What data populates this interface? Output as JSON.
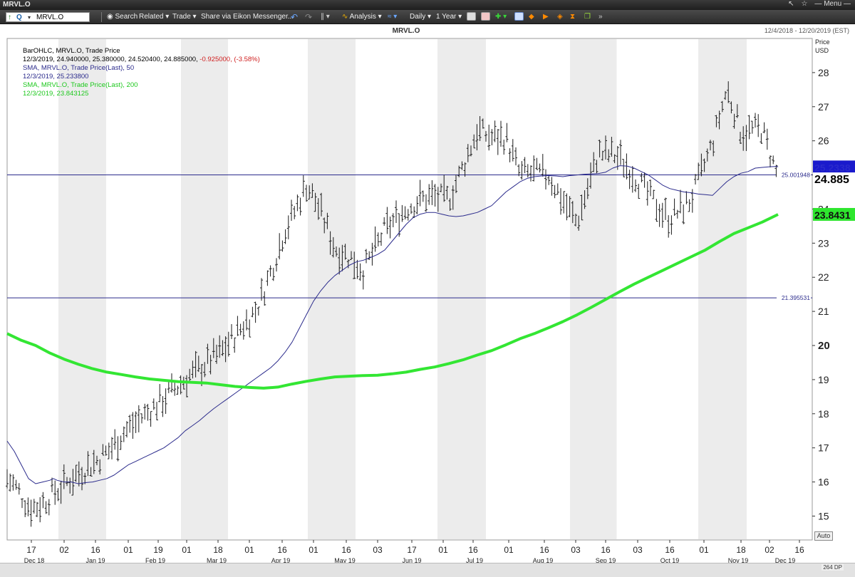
{
  "window": {
    "title": "MRVL.O",
    "controls": [
      "↖",
      "☆",
      "— Menu —"
    ]
  },
  "toolbar": {
    "ric_value": "MRVL.O",
    "search_label": "Search",
    "related_label": "Related",
    "trade_label": "Trade",
    "share_label": "Share via Eikon Messenger...",
    "analysis_label": "Analysis",
    "interval_label": "Daily",
    "period_label": "1 Year"
  },
  "header": {
    "title": "MRVL.O",
    "date_range": "12/4/2018 - 12/20/2019 (EST)"
  },
  "legend": {
    "line1": "BarOHLC, MRVL.O, Trade Price",
    "line2a": "12/3/2019, 24.940000, 25.380000, 24.520400, 24.885000, ",
    "line2b": "-0.925000, (-3.58%)",
    "line3": "SMA, MRVL.O, Trade Price(Last),  50",
    "line4": "12/3/2019, 25.233800",
    "line5": "SMA, MRVL.O, Trade Price(Last),  200",
    "line6": "12/3/2019, 23.843125"
  },
  "axis_labels": {
    "price": "Price",
    "currency": "USD",
    "auto": "Auto",
    "dp": "264 DP"
  },
  "colors": {
    "bars": "#1a1a1a",
    "sma50": "#2b2b8c",
    "sma200": "#33e633",
    "hline": "#2b2b8c",
    "negative": "#d02020",
    "band": "#ececec"
  },
  "chart_data": {
    "type": "line",
    "title": "MRVL.O",
    "ylabel": "Price USD",
    "ylim": [
      14.3,
      29.0
    ],
    "yticks": [
      15,
      16,
      17,
      18,
      19,
      20,
      21,
      22,
      23,
      24,
      25,
      26,
      27,
      28
    ],
    "x_major_ticks": [
      "17",
      "02",
      "16",
      "01",
      "19",
      "01",
      "18",
      "01",
      "16",
      "01",
      "16",
      "03",
      "17",
      "01",
      "16",
      "01",
      "16",
      "03",
      "16",
      "03",
      "16",
      "01",
      "18",
      "02",
      "16"
    ],
    "x_month_labels": [
      "Dec 18",
      "Jan 19",
      "Feb 19",
      "Mar 19",
      "Apr 19",
      "May 19",
      "Jun 19",
      "Jul 19",
      "Aug 19",
      "Sep 19",
      "Oct 19",
      "Nov 19",
      "Dec 19"
    ],
    "horizontal_lines": [
      {
        "value": 25.001948,
        "label": "25.001948"
      },
      {
        "value": 21.395531,
        "label": "21.395531"
      }
    ],
    "last_values": {
      "price": "24.885",
      "sma50": "25.2338",
      "sma200": "23.8431"
    },
    "series": [
      {
        "name": "SMA, MRVL.O, Trade Price(Last), 50",
        "points": [
          [
            0,
            17.2
          ],
          [
            10,
            16.9
          ],
          [
            20,
            16.5
          ],
          [
            30,
            16.1
          ],
          [
            40,
            15.95
          ],
          [
            50,
            16.0
          ],
          [
            60,
            16.05
          ],
          [
            65,
            16.1
          ],
          [
            70,
            16.05
          ],
          [
            80,
            16.0
          ],
          [
            90,
            16.0
          ],
          [
            100,
            15.95
          ],
          [
            110,
            15.98
          ],
          [
            120,
            16.0
          ],
          [
            130,
            16.05
          ],
          [
            140,
            16.1
          ],
          [
            150,
            16.2
          ],
          [
            160,
            16.35
          ],
          [
            170,
            16.5
          ],
          [
            180,
            16.6
          ],
          [
            190,
            16.7
          ],
          [
            200,
            16.8
          ],
          [
            210,
            16.9
          ],
          [
            220,
            17.0
          ],
          [
            230,
            17.15
          ],
          [
            240,
            17.3
          ],
          [
            250,
            17.5
          ],
          [
            260,
            17.65
          ],
          [
            270,
            17.8
          ],
          [
            280,
            17.98
          ],
          [
            290,
            18.15
          ],
          [
            300,
            18.3
          ],
          [
            310,
            18.45
          ],
          [
            320,
            18.6
          ],
          [
            330,
            18.75
          ],
          [
            340,
            18.9
          ],
          [
            350,
            19.05
          ],
          [
            360,
            19.2
          ],
          [
            370,
            19.35
          ],
          [
            380,
            19.55
          ],
          [
            390,
            19.8
          ],
          [
            400,
            20.1
          ],
          [
            410,
            20.5
          ],
          [
            420,
            20.9
          ],
          [
            430,
            21.3
          ],
          [
            440,
            21.6
          ],
          [
            450,
            21.85
          ],
          [
            460,
            22.05
          ],
          [
            470,
            22.2
          ],
          [
            480,
            22.35
          ],
          [
            490,
            22.45
          ],
          [
            500,
            22.5
          ],
          [
            510,
            22.58
          ],
          [
            520,
            22.67
          ],
          [
            530,
            22.8
          ],
          [
            540,
            23.05
          ],
          [
            550,
            23.3
          ],
          [
            560,
            23.55
          ],
          [
            570,
            23.75
          ],
          [
            580,
            23.85
          ],
          [
            590,
            23.9
          ],
          [
            600,
            23.9
          ],
          [
            610,
            23.85
          ],
          [
            620,
            23.8
          ],
          [
            630,
            23.78
          ],
          [
            640,
            23.8
          ],
          [
            650,
            23.85
          ],
          [
            660,
            23.9
          ],
          [
            670,
            24.0
          ],
          [
            680,
            24.1
          ],
          [
            690,
            24.3
          ],
          [
            700,
            24.5
          ],
          [
            710,
            24.65
          ],
          [
            720,
            24.8
          ],
          [
            730,
            24.9
          ],
          [
            740,
            24.95
          ],
          [
            750,
            24.97
          ],
          [
            760,
            24.98
          ],
          [
            770,
            24.97
          ],
          [
            780,
            24.95
          ],
          [
            790,
            24.98
          ],
          [
            800,
            25.0
          ],
          [
            810,
            25.02
          ],
          [
            820,
            25.03
          ],
          [
            830,
            25.04
          ],
          [
            840,
            25.08
          ],
          [
            850,
            25.2
          ],
          [
            860,
            25.27
          ],
          [
            870,
            25.26
          ],
          [
            880,
            25.2
          ],
          [
            890,
            25.1
          ],
          [
            900,
            25.0
          ],
          [
            910,
            24.85
          ],
          [
            920,
            24.7
          ],
          [
            930,
            24.6
          ],
          [
            940,
            24.55
          ],
          [
            950,
            24.5
          ],
          [
            960,
            24.48
          ],
          [
            970,
            24.44
          ],
          [
            980,
            24.42
          ],
          [
            990,
            24.4
          ],
          [
            1000,
            24.6
          ],
          [
            1010,
            24.8
          ],
          [
            1020,
            24.95
          ],
          [
            1030,
            25.05
          ],
          [
            1040,
            25.1
          ],
          [
            1050,
            25.2
          ],
          [
            1060,
            25.22
          ],
          [
            1070,
            25.24
          ],
          [
            1080,
            25.25
          ],
          [
            1082,
            25.2338
          ]
        ]
      },
      {
        "name": "SMA, MRVL.O, Trade Price(Last), 200",
        "points": [
          [
            0,
            20.35
          ],
          [
            20,
            20.15
          ],
          [
            40,
            20.0
          ],
          [
            60,
            19.78
          ],
          [
            80,
            19.6
          ],
          [
            100,
            19.45
          ],
          [
            120,
            19.32
          ],
          [
            140,
            19.22
          ],
          [
            160,
            19.15
          ],
          [
            180,
            19.08
          ],
          [
            200,
            19.02
          ],
          [
            220,
            18.98
          ],
          [
            240,
            18.94
          ],
          [
            260,
            18.92
          ],
          [
            280,
            18.9
          ],
          [
            300,
            18.85
          ],
          [
            320,
            18.8
          ],
          [
            340,
            18.77
          ],
          [
            360,
            18.75
          ],
          [
            380,
            18.78
          ],
          [
            400,
            18.87
          ],
          [
            420,
            18.95
          ],
          [
            440,
            19.02
          ],
          [
            460,
            19.08
          ],
          [
            480,
            19.1
          ],
          [
            500,
            19.12
          ],
          [
            520,
            19.13
          ],
          [
            540,
            19.17
          ],
          [
            560,
            19.22
          ],
          [
            580,
            19.3
          ],
          [
            600,
            19.37
          ],
          [
            620,
            19.47
          ],
          [
            640,
            19.58
          ],
          [
            660,
            19.72
          ],
          [
            680,
            19.85
          ],
          [
            700,
            20.02
          ],
          [
            720,
            20.2
          ],
          [
            740,
            20.35
          ],
          [
            760,
            20.52
          ],
          [
            780,
            20.7
          ],
          [
            800,
            20.9
          ],
          [
            820,
            21.12
          ],
          [
            840,
            21.35
          ],
          [
            860,
            21.58
          ],
          [
            880,
            21.8
          ],
          [
            900,
            22.0
          ],
          [
            920,
            22.2
          ],
          [
            940,
            22.4
          ],
          [
            960,
            22.6
          ],
          [
            980,
            22.8
          ],
          [
            1000,
            23.05
          ],
          [
            1020,
            23.28
          ],
          [
            1040,
            23.45
          ],
          [
            1060,
            23.62
          ],
          [
            1082,
            23.843
          ]
        ]
      }
    ]
  }
}
